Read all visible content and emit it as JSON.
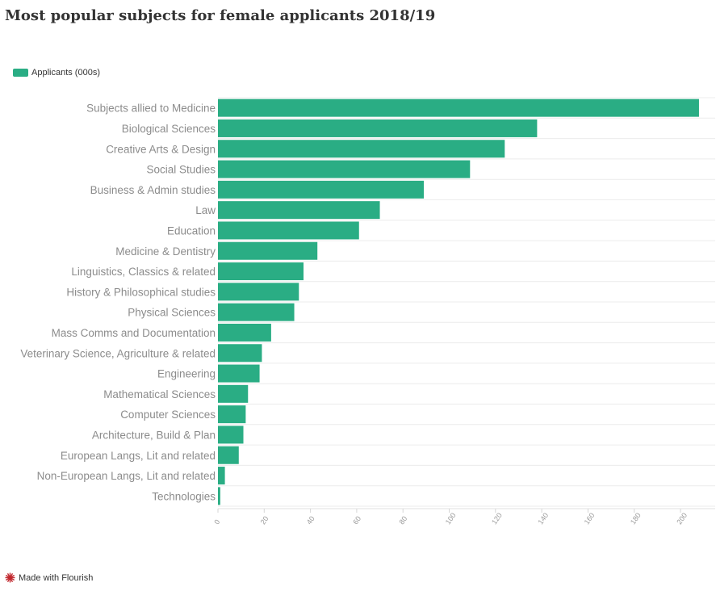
{
  "title": "Most popular subjects for female applicants 2018/19",
  "legend": {
    "label": "Applicants (000s)",
    "color": "#2aad84"
  },
  "footer": {
    "label": "Made with Flourish",
    "icon": "flourish-logo-icon",
    "icon_color": "#c1272d"
  },
  "chart_data": {
    "type": "bar",
    "orientation": "horizontal",
    "title": "Most popular subjects for female applicants 2018/19",
    "xlabel": "",
    "ylabel": "",
    "xlim": [
      0,
      215
    ],
    "xticks": [
      0,
      20,
      40,
      60,
      80,
      100,
      120,
      140,
      160,
      180,
      200
    ],
    "grid": true,
    "legend_placement": "top-left",
    "categories": [
      "Subjects allied to Medicine",
      "Biological Sciences",
      "Creative Arts & Design",
      "Social Studies",
      "Business & Admin studies",
      "Law",
      "Education",
      "Medicine & Dentistry",
      "Linguistics, Classics & related",
      "History & Philosophical studies",
      "Physical Sciences",
      "Mass Comms and Documentation",
      "Veterinary Science, Agriculture & related",
      "Engineering",
      "Mathematical Sciences",
      "Computer Sciences",
      "Architecture, Build & Plan",
      "European Langs, Lit and related",
      "Non-European Langs, Lit and related",
      "Technologies"
    ],
    "series": [
      {
        "name": "Applicants (000s)",
        "color": "#2aad84",
        "values": [
          208,
          138,
          124,
          109,
          89,
          70,
          61,
          43,
          37,
          35,
          33,
          23,
          19,
          18,
          13,
          12,
          11,
          9,
          3,
          1
        ]
      }
    ]
  }
}
